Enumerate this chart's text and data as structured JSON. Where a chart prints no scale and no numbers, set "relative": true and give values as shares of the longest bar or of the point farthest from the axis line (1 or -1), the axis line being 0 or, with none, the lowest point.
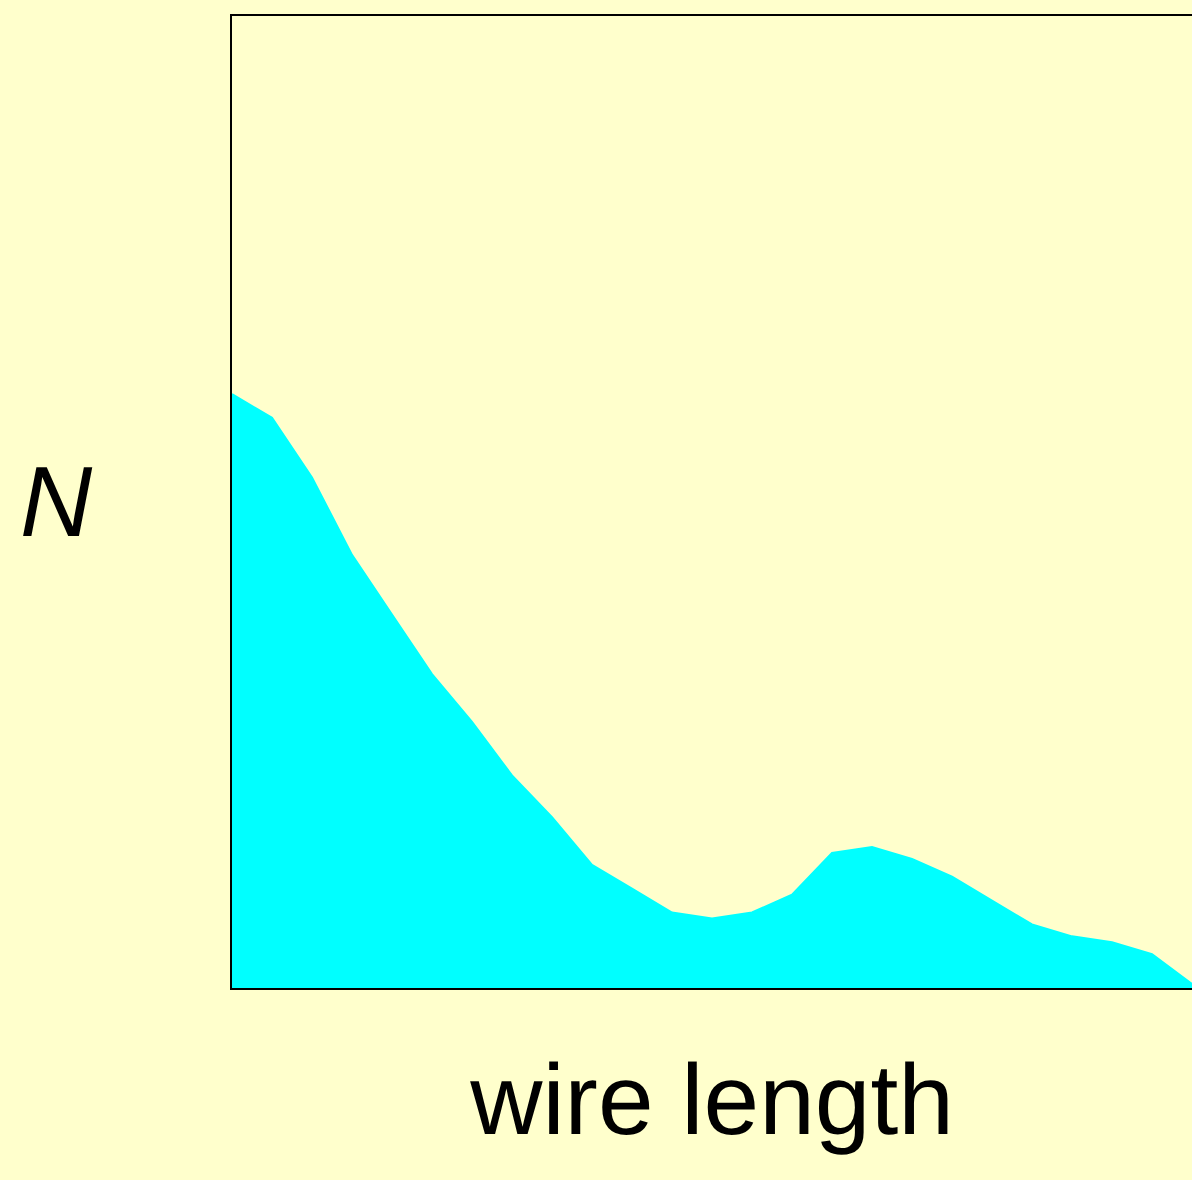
{
  "chart_data": {
    "type": "area",
    "relative": true,
    "xlabel": "wire length",
    "ylabel": "N",
    "categories": [
      null,
      null,
      null,
      null,
      null,
      null,
      null,
      null,
      null,
      null,
      null,
      null,
      null,
      null,
      null,
      null,
      null,
      null,
      null,
      null,
      null,
      null,
      null,
      null,
      null
    ],
    "series": [
      {
        "color": "#00ffff",
        "values": [
          1,
          0.96,
          0.86,
          0.73,
          0.63,
          0.53,
          0.45,
          0.36,
          0.29,
          0.21,
          0.17,
          0.13,
          0.12,
          0.13,
          0.16,
          0.23,
          0.24,
          0.22,
          0.19,
          0.15,
          0.11,
          0.09,
          0.08,
          0.06,
          0.01
        ]
      }
    ]
  }
}
